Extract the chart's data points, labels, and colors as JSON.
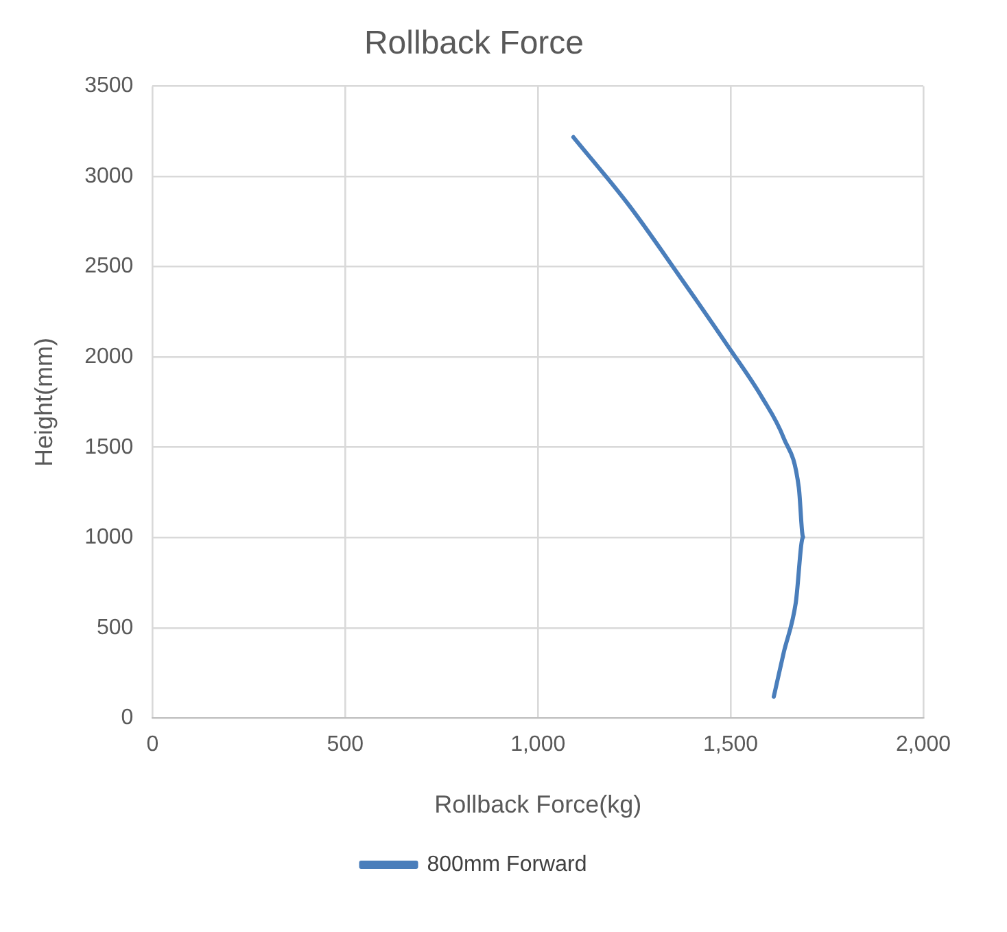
{
  "chart_data": {
    "type": "line",
    "title": "Rollback Force",
    "xlabel": "Rollback Force(kg)",
    "ylabel": "Height(mm)",
    "xlim": [
      0,
      2000
    ],
    "xticks": [
      0,
      500,
      {
        "value": 1000,
        "label": "1,000"
      },
      {
        "value": 1500,
        "label": "1,500"
      },
      {
        "value": 2000,
        "label": "2,000"
      }
    ],
    "ylim": [
      0,
      3500
    ],
    "yticks": [
      0,
      500,
      1000,
      1500,
      2000,
      2500,
      3000,
      3500
    ],
    "series": [
      {
        "name": "800mm Forward",
        "color": "#4a7ebb",
        "x": [
          1092,
          1235,
          1369,
          1496,
          1581,
          1638,
          1677,
          1688,
          1669,
          1638,
          1612
        ],
        "values": [
          3218,
          2844,
          2443,
          2051,
          1778,
          1550,
          1276,
          1003,
          638,
          365,
          119
        ]
      }
    ],
    "grid": true,
    "legend": "bottom",
    "marker": "none",
    "line_style": "solid"
  }
}
